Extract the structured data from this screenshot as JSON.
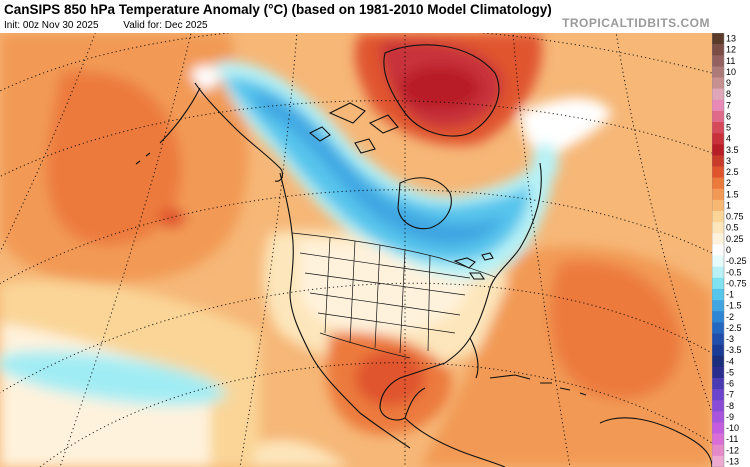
{
  "header": {
    "title": "CanSIPS 850 hPa Temperature Anomaly (°C) (based on 1981-2010 Model Climatology)",
    "init": "Init: 00z Nov 30 2025",
    "valid": "Valid for: Dec 2025",
    "brand": "TROPICALTIDBITS.COM"
  },
  "legend": {
    "unit": "°C",
    "labels": [
      "13",
      "12",
      "11",
      "10",
      "9",
      "8",
      "7",
      "6",
      "5",
      "4",
      "3.5",
      "3",
      "2.5",
      "2",
      "1.5",
      "1",
      "0.75",
      "0.5",
      "0.25",
      "0",
      "-0.25",
      "-0.5",
      "-0.75",
      "-1",
      "-1.5",
      "-2",
      "-2.5",
      "-3",
      "-3.5",
      "-4",
      "-5",
      "-6",
      "-7",
      "-8",
      "-9",
      "-10",
      "-11",
      "-12",
      "-13"
    ],
    "colors": [
      "#5a3a28",
      "#7a4e44",
      "#946060",
      "#ad7a7a",
      "#c79090",
      "#dea6b8",
      "#e88ab8",
      "#e06a8a",
      "#d44a5a",
      "#c8303a",
      "#b81e26",
      "#c83a2a",
      "#e0552e",
      "#ec7a3c",
      "#f29a55",
      "#f7b873",
      "#fad597",
      "#fde6bc",
      "#fff2dc",
      "#ffffff",
      "#e6fbfc",
      "#b8f2f6",
      "#7ee3ef",
      "#56c5ec",
      "#3fa6e2",
      "#2e86d4",
      "#2568c2",
      "#1f4faa",
      "#1b3c94",
      "#1a2e7c",
      "#2a2c8e",
      "#4a3ab4",
      "#6a44cc",
      "#8a4cd6",
      "#a854dc",
      "#c45ce0",
      "#da6ed8",
      "#e48ac8",
      "#eeaad0"
    ]
  },
  "map": {
    "projection": "polar stereographic",
    "variable": "850 hPa temperature anomaly"
  }
}
